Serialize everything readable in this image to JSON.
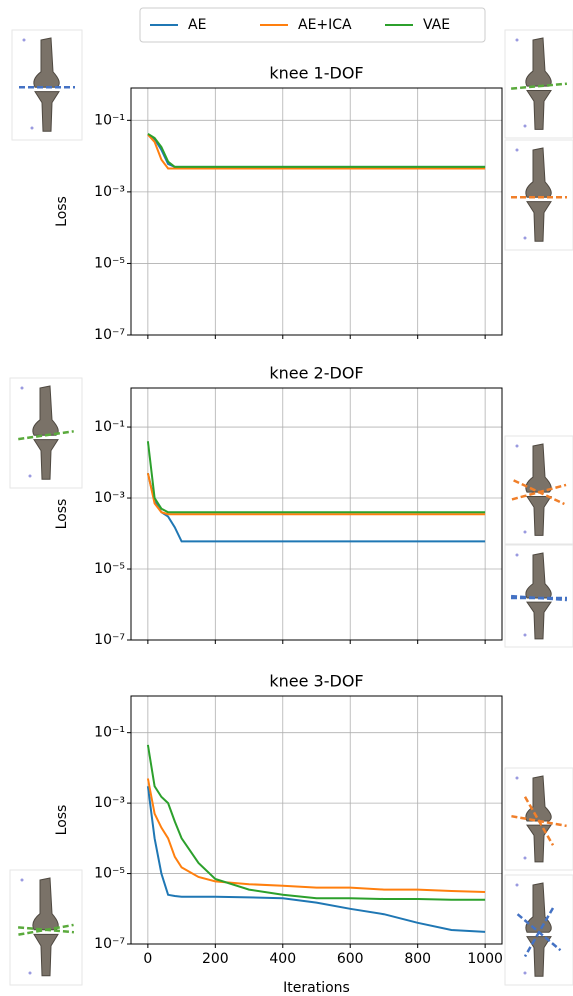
{
  "chart_data": [
    {
      "type": "line",
      "title": "knee 1-DOF",
      "y_label": "Loss",
      "log_y": true,
      "grid": true,
      "legend": "upper center",
      "x": [
        0,
        20,
        40,
        60,
        80,
        100,
        150,
        200,
        300,
        400,
        500,
        600,
        700,
        800,
        900,
        1000
      ],
      "xlim": [
        -50,
        1050
      ],
      "xticks": [
        0,
        200,
        400,
        600,
        800,
        1000
      ],
      "ylim": [
        1e-07,
        0.8
      ],
      "yticks": [
        {
          "value": 0.1,
          "label": "10⁻¹"
        },
        {
          "value": 0.001,
          "label": "10⁻³"
        },
        {
          "value": 1e-05,
          "label": "10⁻⁵"
        },
        {
          "value": 1e-07,
          "label": "10⁻⁷"
        }
      ],
      "series": [
        {
          "name": "AE",
          "color": "#1f77b4",
          "values": [
            0.04,
            0.03,
            0.015,
            0.006,
            0.005,
            0.005,
            0.005,
            0.005,
            0.005,
            0.005,
            0.005,
            0.005,
            0.005,
            0.005,
            0.005,
            0.005
          ]
        },
        {
          "name": "AE+ICA",
          "color": "#ff7f0e",
          "values": [
            0.04,
            0.025,
            0.008,
            0.0045,
            0.0045,
            0.0045,
            0.0045,
            0.0045,
            0.0045,
            0.0045,
            0.0045,
            0.0045,
            0.0045,
            0.0045,
            0.0045,
            0.0045
          ]
        },
        {
          "name": "VAE",
          "color": "#2ca02c",
          "values": [
            0.042,
            0.032,
            0.018,
            0.007,
            0.005,
            0.005,
            0.005,
            0.005,
            0.005,
            0.005,
            0.005,
            0.005,
            0.005,
            0.005,
            0.005,
            0.005
          ]
        }
      ]
    },
    {
      "type": "line",
      "title": "knee 2-DOF",
      "y_label": "Loss",
      "log_y": true,
      "grid": true,
      "x": [
        0,
        20,
        40,
        60,
        80,
        100,
        150,
        200,
        300,
        400,
        500,
        600,
        700,
        800,
        900,
        1000
      ],
      "xlim": [
        -50,
        1050
      ],
      "xticks": [
        0,
        200,
        400,
        600,
        800,
        1000
      ],
      "ylim": [
        1e-07,
        1.26
      ],
      "yticks": [
        {
          "value": 0.1,
          "label": "10⁻¹"
        },
        {
          "value": 0.001,
          "label": "10⁻³"
        },
        {
          "value": 1e-05,
          "label": "10⁻⁵"
        },
        {
          "value": 1e-07,
          "label": "10⁻⁷"
        }
      ],
      "series": [
        {
          "name": "AE",
          "color": "#1f77b4",
          "values": [
            0.005,
            0.0008,
            0.0004,
            0.0003,
            0.00015,
            6e-05,
            6e-05,
            6e-05,
            6e-05,
            6e-05,
            6e-05,
            6e-05,
            6e-05,
            6e-05,
            6e-05,
            6e-05
          ]
        },
        {
          "name": "AE+ICA",
          "color": "#ff7f0e",
          "values": [
            0.005,
            0.0007,
            0.0004,
            0.00035,
            0.00035,
            0.00035,
            0.00035,
            0.00035,
            0.00035,
            0.00035,
            0.00035,
            0.00035,
            0.00035,
            0.00035,
            0.00035,
            0.00035
          ]
        },
        {
          "name": "VAE",
          "color": "#2ca02c",
          "values": [
            0.04,
            0.001,
            0.0005,
            0.0004,
            0.0004,
            0.0004,
            0.0004,
            0.0004,
            0.0004,
            0.0004,
            0.0004,
            0.0004,
            0.0004,
            0.0004,
            0.0004,
            0.0004
          ]
        }
      ]
    },
    {
      "type": "line",
      "title": "knee 3-DOF",
      "y_label": "Loss",
      "x_label": "Iterations",
      "log_y": true,
      "grid": true,
      "x": [
        0,
        20,
        40,
        60,
        80,
        100,
        150,
        200,
        300,
        400,
        500,
        600,
        700,
        800,
        900,
        1000
      ],
      "xlim": [
        -50,
        1050
      ],
      "xticks": [
        0,
        200,
        400,
        600,
        800,
        1000
      ],
      "ylim": [
        1e-07,
        1.1
      ],
      "yticks": [
        {
          "value": 0.1,
          "label": "10⁻¹"
        },
        {
          "value": 0.001,
          "label": "10⁻³"
        },
        {
          "value": 1e-05,
          "label": "10⁻⁵"
        },
        {
          "value": 1e-07,
          "label": "10⁻⁷"
        }
      ],
      "series": [
        {
          "name": "AE",
          "color": "#1f77b4",
          "values": [
            0.003,
            0.0001,
            1e-05,
            2.5e-06,
            2.3e-06,
            2.2e-06,
            2.2e-06,
            2.2e-06,
            2.1e-06,
            2e-06,
            1.5e-06,
            1e-06,
            7e-07,
            4e-07,
            2.5e-07,
            2.2e-07
          ]
        },
        {
          "name": "AE+ICA",
          "color": "#ff7f0e",
          "values": [
            0.005,
            0.0005,
            0.0002,
            0.0001,
            3e-05,
            1.5e-05,
            8e-06,
            6e-06,
            5e-06,
            4.5e-06,
            4e-06,
            4e-06,
            3.5e-06,
            3.5e-06,
            3.2e-06,
            3e-06
          ]
        },
        {
          "name": "VAE",
          "color": "#2ca02c",
          "values": [
            0.045,
            0.003,
            0.0015,
            0.001,
            0.0003,
            0.0001,
            2e-05,
            7e-06,
            3.5e-06,
            2.5e-06,
            2e-06,
            2e-06,
            1.9e-06,
            1.9e-06,
            1.8e-06,
            1.8e-06
          ]
        }
      ]
    }
  ]
}
